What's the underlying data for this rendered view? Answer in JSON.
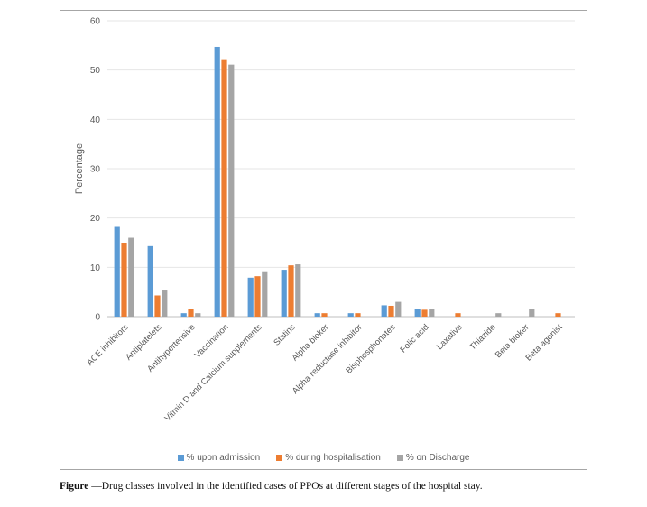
{
  "chart_data": {
    "type": "bar",
    "ylabel": "Percentage",
    "ylim": [
      0,
      60
    ],
    "yticks": [
      0,
      10,
      20,
      30,
      40,
      50,
      60
    ],
    "grid": true,
    "legend_position": "bottom",
    "categories": [
      "ACE inhibitors",
      "Antiplatelets",
      "Antihypertensive",
      "Vaccination",
      "Vitmin D and Calcium supplements",
      "Statins",
      "Alpha bloker",
      "Alpha reductase inhibitor",
      "Bisphosphonates",
      "Folic acid",
      "Laxative",
      "Thiazide",
      "Beta bloker",
      "Beta agonist"
    ],
    "series": [
      {
        "name": "% upon admission",
        "color": "#5b9bd5",
        "values": [
          18.2,
          14.3,
          0.7,
          54.7,
          7.9,
          9.5,
          0.7,
          0.7,
          2.3,
          1.5,
          0,
          0,
          0,
          0
        ]
      },
      {
        "name": "% during hospitalisation",
        "color": "#ed7d31",
        "values": [
          15.0,
          4.3,
          1.5,
          52.2,
          8.2,
          10.4,
          0.7,
          0.7,
          2.2,
          1.4,
          0.7,
          0,
          0,
          0.7
        ]
      },
      {
        "name": "% on Discharge",
        "color": "#a5a5a5",
        "values": [
          16.0,
          5.3,
          0.7,
          51.1,
          9.2,
          10.6,
          0,
          0,
          3.0,
          1.5,
          0,
          0.7,
          1.5,
          0
        ]
      }
    ]
  },
  "caption": {
    "label": "Figure",
    "text": " —Drug classes involved in the identified cases of PPOs at different stages of the hospital stay."
  }
}
